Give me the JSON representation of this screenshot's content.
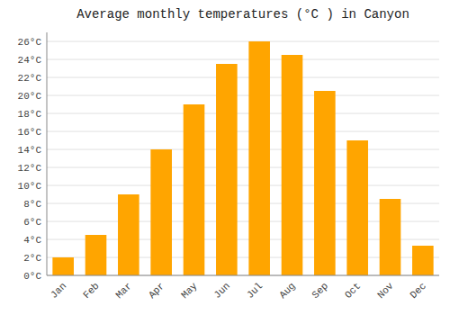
{
  "chart_data": {
    "type": "bar",
    "title": "Average monthly temperatures (°C ) in Canyon",
    "categories": [
      "Jan",
      "Feb",
      "Mar",
      "Apr",
      "May",
      "Jun",
      "Jul",
      "Aug",
      "Sep",
      "Oct",
      "Nov",
      "Dec"
    ],
    "values": [
      2.0,
      4.5,
      9.0,
      14.0,
      19.0,
      23.5,
      26.0,
      24.5,
      20.5,
      15.0,
      8.5,
      3.3
    ],
    "color": "#FFA500",
    "ylim": [
      0,
      27
    ],
    "yticks": [
      {
        "value": 0,
        "label": "0°C"
      },
      {
        "value": 2,
        "label": "2°C"
      },
      {
        "value": 4,
        "label": "4°C"
      },
      {
        "value": 6,
        "label": "6°C"
      },
      {
        "value": 8,
        "label": "8°C"
      },
      {
        "value": 10,
        "label": "10°C"
      },
      {
        "value": 12,
        "label": "12°C"
      },
      {
        "value": 14,
        "label": "14°C"
      },
      {
        "value": 16,
        "label": "16°C"
      },
      {
        "value": 18,
        "label": "18°C"
      },
      {
        "value": 20,
        "label": "20°C"
      },
      {
        "value": 22,
        "label": "22°C"
      },
      {
        "value": 24,
        "label": "24°C"
      },
      {
        "value": 26,
        "label": "26°C"
      }
    ],
    "grid": true
  }
}
